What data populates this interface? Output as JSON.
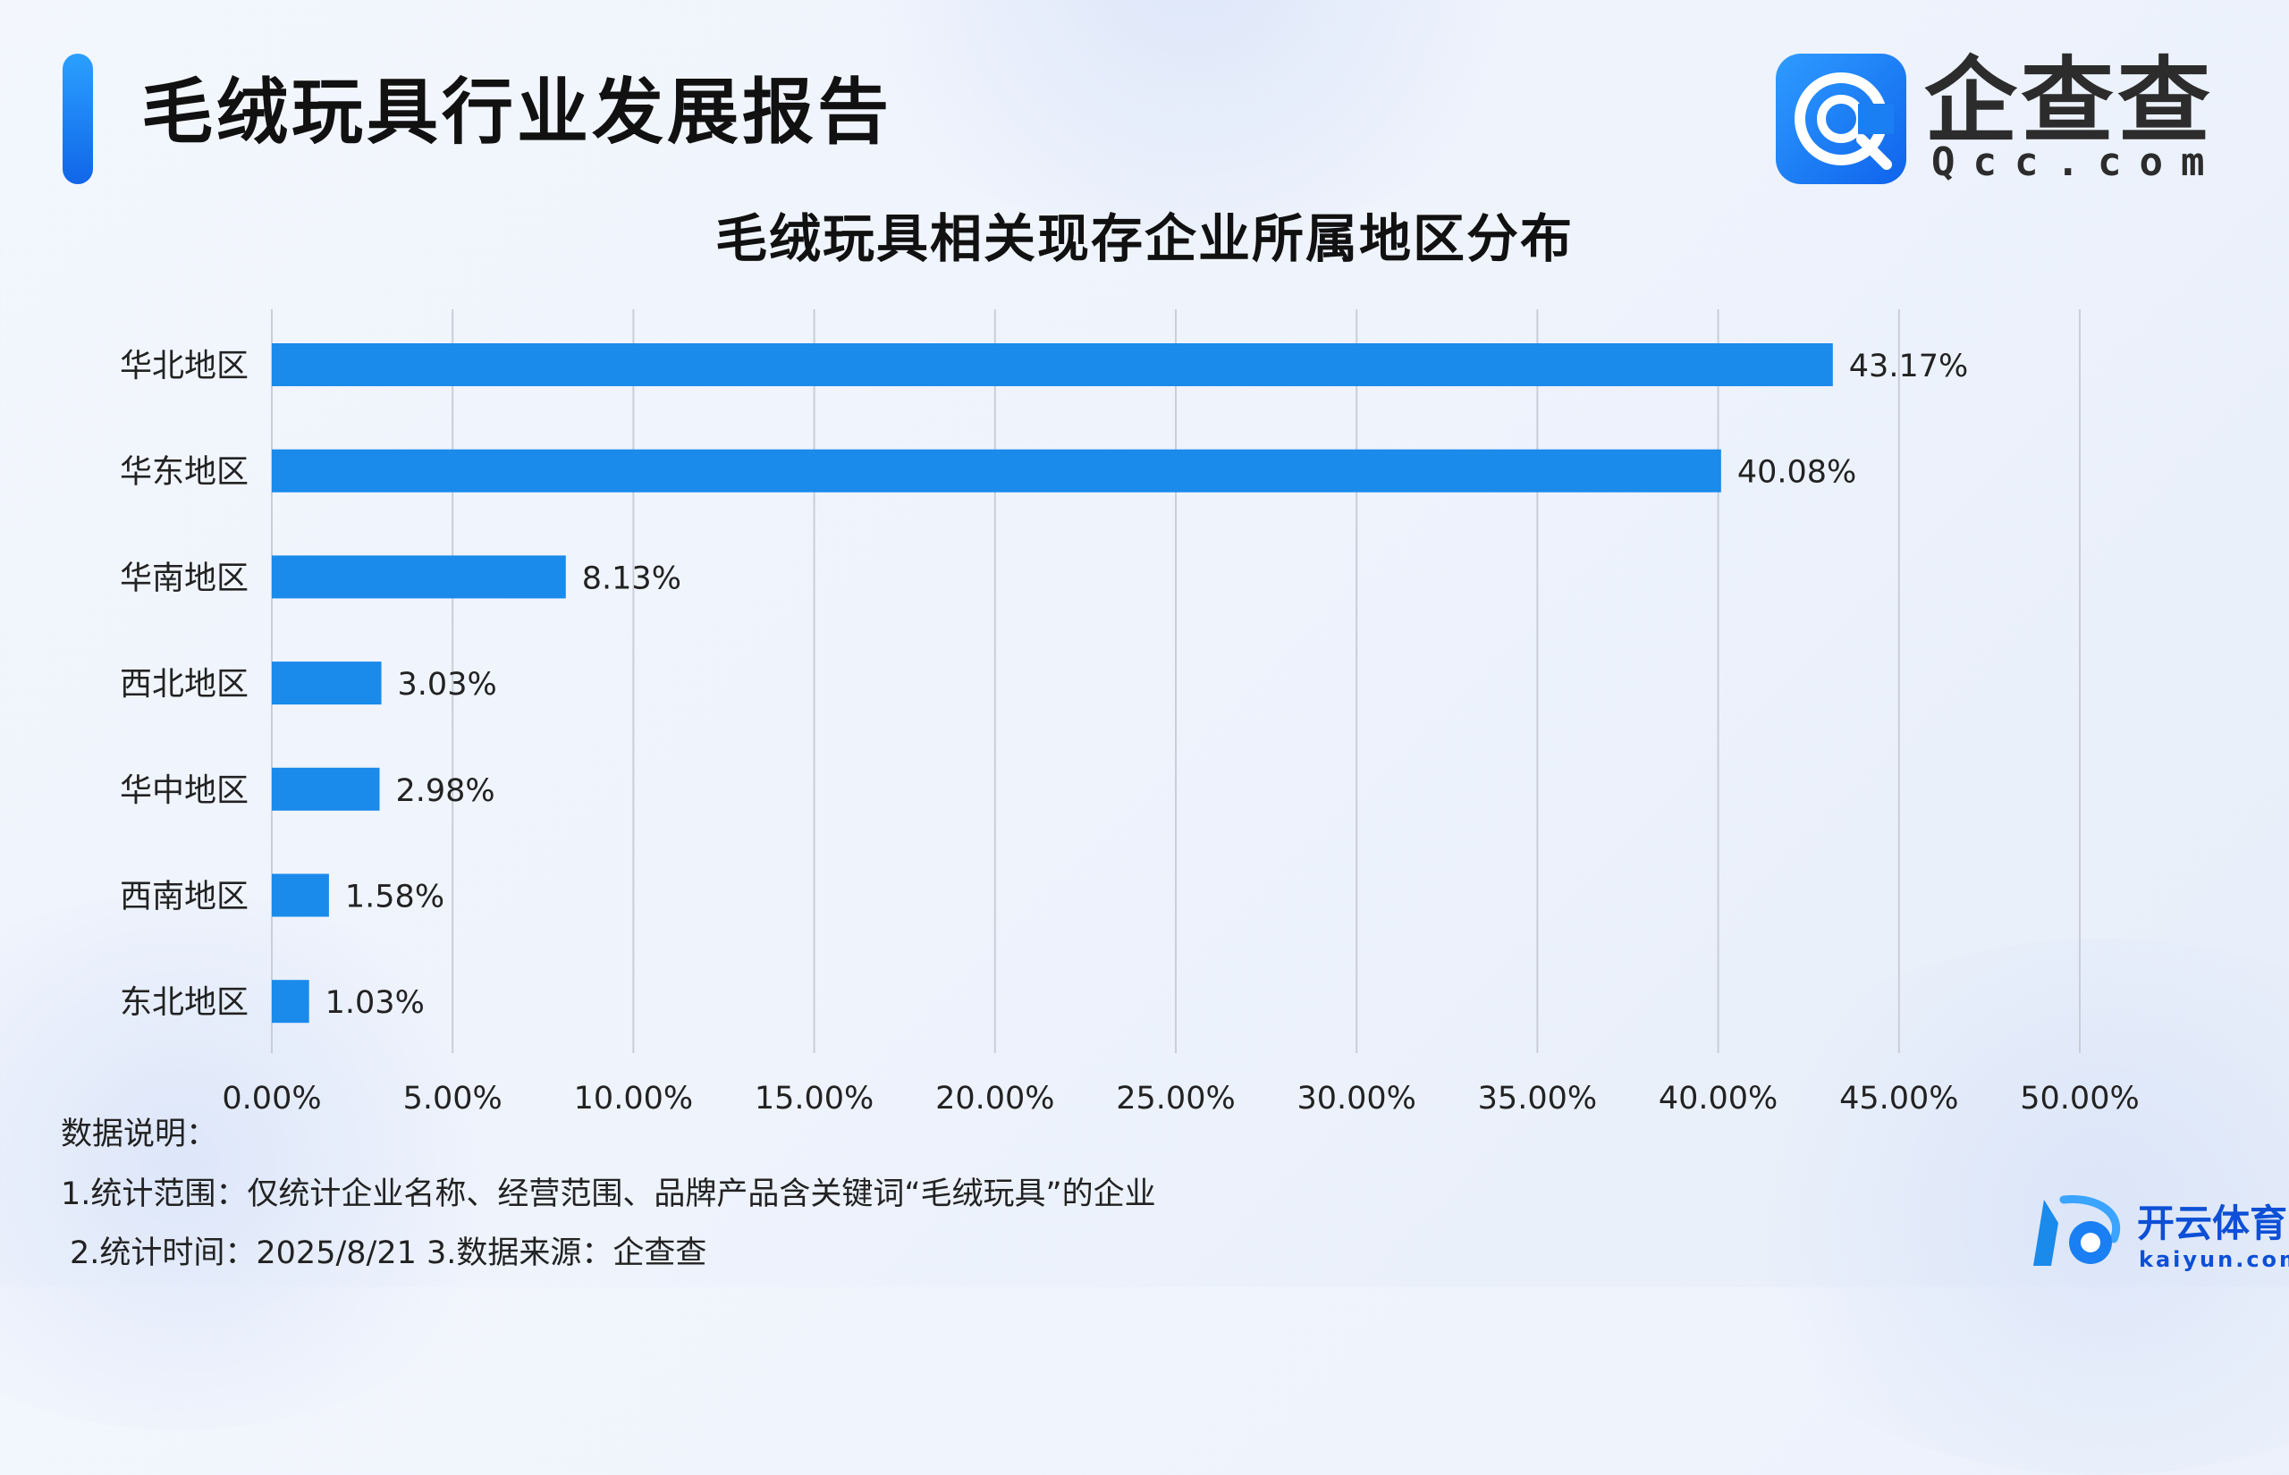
{
  "header": {
    "report_title": "毛绒玩具行业发展报告",
    "brand_cn": "企查查",
    "brand_en": "Qcc.com"
  },
  "chart_data": {
    "type": "bar",
    "orientation": "horizontal",
    "title": "毛绒玩具相关现存企业所属地区分布",
    "categories": [
      "华北地区",
      "华东地区",
      "华南地区",
      "西北地区",
      "华中地区",
      "西南地区",
      "东北地区"
    ],
    "values": [
      43.17,
      40.08,
      8.13,
      3.03,
      2.98,
      1.58,
      1.03
    ],
    "value_labels": [
      "43.17%",
      "40.08%",
      "8.13%",
      "3.03%",
      "2.98%",
      "1.58%",
      "1.03%"
    ],
    "xlim": [
      0,
      50
    ],
    "xticks": [
      0,
      5,
      10,
      15,
      20,
      25,
      30,
      35,
      40,
      45,
      50
    ],
    "xtick_labels": [
      "0.00%",
      "5.00%",
      "10.00%",
      "15.00%",
      "20.00%",
      "25.00%",
      "30.00%",
      "35.00%",
      "40.00%",
      "45.00%",
      "50.00%"
    ],
    "grid": "vertical",
    "bar_color": "#1a8aeb"
  },
  "notes": {
    "heading": "数据说明：",
    "line1": "1.统计范围：仅统计企业名称、经营范围、品牌产品含关键词“毛绒玩具”的企业",
    "line2": "2.统计时间：2025/8/21 3.数据来源：企查查"
  },
  "watermark": {
    "cn": "开云体育",
    "en": "kaiyun.com"
  },
  "colors": {
    "accent": "#1a8aeb",
    "brand": "#1366ea",
    "watermark": "#0d4fd6"
  }
}
